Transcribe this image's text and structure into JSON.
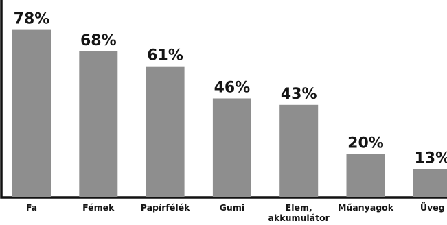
{
  "chart_data": {
    "type": "bar",
    "title": "",
    "xlabel": "",
    "ylabel": "",
    "ylim": [
      0,
      80
    ],
    "grid": false,
    "legend": "none",
    "bar_color": "#8e8e8e",
    "text_color": "#151515",
    "categories": [
      "Fa",
      "Fémek",
      "Papírfélék",
      "Gumi",
      "Elem, akkumulátor",
      "Műanyagok",
      "Üveg"
    ],
    "category_lines": [
      [
        "Fa"
      ],
      [
        "Fémek"
      ],
      [
        "Papírfélék"
      ],
      [
        "Gumi"
      ],
      [
        "Elem,",
        "akkumulátor"
      ],
      [
        "Műanyagok"
      ],
      [
        "Üveg"
      ]
    ],
    "values": [
      78,
      68,
      61,
      46,
      43,
      20,
      13
    ],
    "value_labels": [
      "78%",
      "68%",
      "61%",
      "46%",
      "43%",
      "20%",
      "13%"
    ]
  }
}
